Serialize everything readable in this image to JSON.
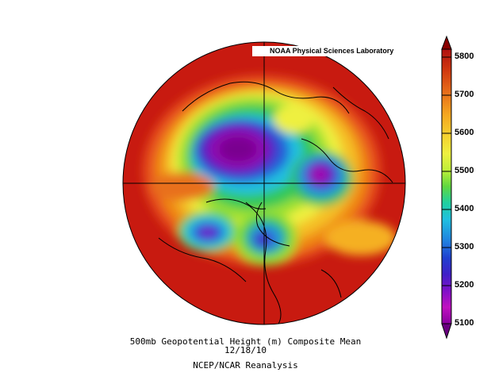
{
  "map": {
    "credit": "NOAA Physical Sciences Laboratory",
    "projection": "north-polar-stereographic",
    "title_line1": "500mb Geopotential Height (m) Composite Mean",
    "title_line2": "12/18/10",
    "source": "NCEP/NCAR Reanalysis"
  },
  "colorbar": {
    "labels": [
      "5800",
      "5700",
      "5600",
      "5500",
      "5400",
      "5300",
      "5200",
      "5100"
    ],
    "colors": [
      "#b01010",
      "#d23a10",
      "#e65f10",
      "#f08a18",
      "#f5b020",
      "#f5d030",
      "#f0ee40",
      "#d2f038",
      "#98e030",
      "#44d040",
      "#20d8a0",
      "#20c0e0",
      "#2090e0",
      "#2050d8",
      "#3020c8",
      "#7010c8",
      "#a010a8",
      "#c010c0",
      "#9000a0"
    ]
  }
}
